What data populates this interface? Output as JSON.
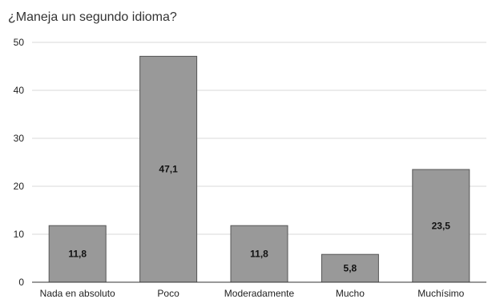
{
  "chart_data": {
    "type": "bar",
    "title": "¿Maneja un segundo idioma?",
    "xlabel": "",
    "ylabel": "",
    "categories": [
      "Nada en absoluto",
      "Poco",
      "Moderadamente",
      "Mucho",
      "Muchísimo"
    ],
    "values": [
      11.8,
      47.1,
      11.8,
      5.8,
      23.5
    ],
    "data_labels": [
      "11,8",
      "47,1",
      "11,8",
      "5,8",
      "23,5"
    ],
    "yticks": [
      "0",
      "10",
      "20",
      "30",
      "40",
      "50"
    ],
    "ylim": [
      0,
      50
    ],
    "grid": true,
    "legend": "none",
    "colors": {
      "bar_fill": "#999999",
      "bar_stroke": "#555555",
      "grid": "#d9d9d9",
      "axis": "#333333"
    }
  }
}
